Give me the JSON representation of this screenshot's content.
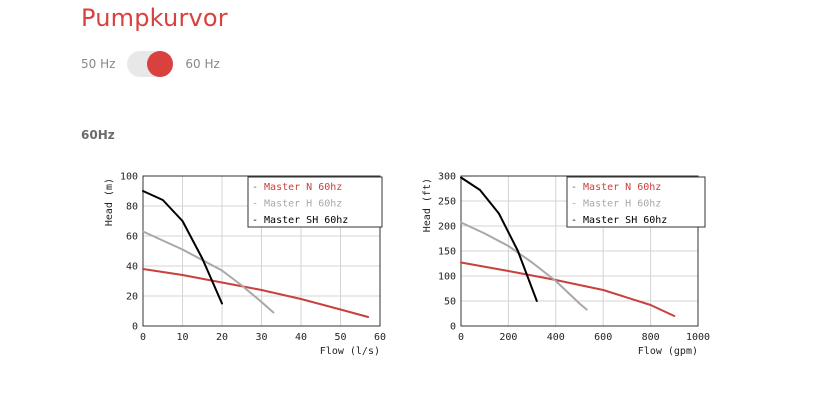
{
  "page": {
    "title": "Pumpkurvor",
    "toggle": {
      "left_label": "50 Hz",
      "right_label": "60 Hz",
      "selected": "60 Hz"
    },
    "section_title": "60Hz",
    "colors": {
      "accent": "#d9413e",
      "series_n": "#c9403c",
      "series_h": "#a8a8a8",
      "series_sh": "#000000"
    }
  },
  "chart_data": [
    {
      "type": "line",
      "xlabel": "Flow (l/s)",
      "ylabel": "Head (m)",
      "xlim": [
        0,
        60
      ],
      "ylim": [
        0,
        100
      ],
      "xticks": [
        "0",
        "10",
        "20",
        "30",
        "40",
        "50",
        "60"
      ],
      "yticks": [
        "0",
        "20",
        "40",
        "60",
        "80",
        "100"
      ],
      "legend_position": "top-right",
      "grid": true,
      "series": [
        {
          "name": "Master N 60hz",
          "color": "#c9403c",
          "x": [
            0,
            10,
            20,
            30,
            40,
            50,
            57
          ],
          "y": [
            38,
            34,
            29,
            24,
            18,
            11,
            6
          ]
        },
        {
          "name": "Master H 60hz",
          "color": "#a8a8a8",
          "x": [
            0,
            10,
            20,
            25,
            30,
            33
          ],
          "y": [
            63,
            51,
            37,
            27,
            16,
            9
          ]
        },
        {
          "name": "Master SH 60hz",
          "color": "#000000",
          "x": [
            0,
            5,
            10,
            15,
            20
          ],
          "y": [
            90,
            84,
            70,
            45,
            15
          ]
        }
      ]
    },
    {
      "type": "line",
      "xlabel": "Flow (gpm)",
      "ylabel": "Head (ft)",
      "xlim": [
        0,
        1000
      ],
      "ylim": [
        0,
        300
      ],
      "xticks": [
        "0",
        "200",
        "400",
        "600",
        "800",
        "1000"
      ],
      "yticks": [
        "0",
        "50",
        "100",
        "150",
        "200",
        "250",
        "300"
      ],
      "legend_position": "top-right",
      "grid": true,
      "series": [
        {
          "name": "Master N 60hz",
          "color": "#c9403c",
          "x": [
            0,
            200,
            400,
            600,
            800,
            900
          ],
          "y": [
            127,
            110,
            92,
            72,
            42,
            20
          ]
        },
        {
          "name": "Master H 60hz",
          "color": "#a8a8a8",
          "x": [
            0,
            100,
            200,
            300,
            400,
            500,
            530
          ],
          "y": [
            207,
            185,
            160,
            127,
            90,
            45,
            33
          ]
        },
        {
          "name": "Master SH 60hz",
          "color": "#000000",
          "x": [
            0,
            80,
            160,
            240,
            320
          ],
          "y": [
            297,
            272,
            225,
            150,
            50
          ]
        }
      ]
    }
  ]
}
